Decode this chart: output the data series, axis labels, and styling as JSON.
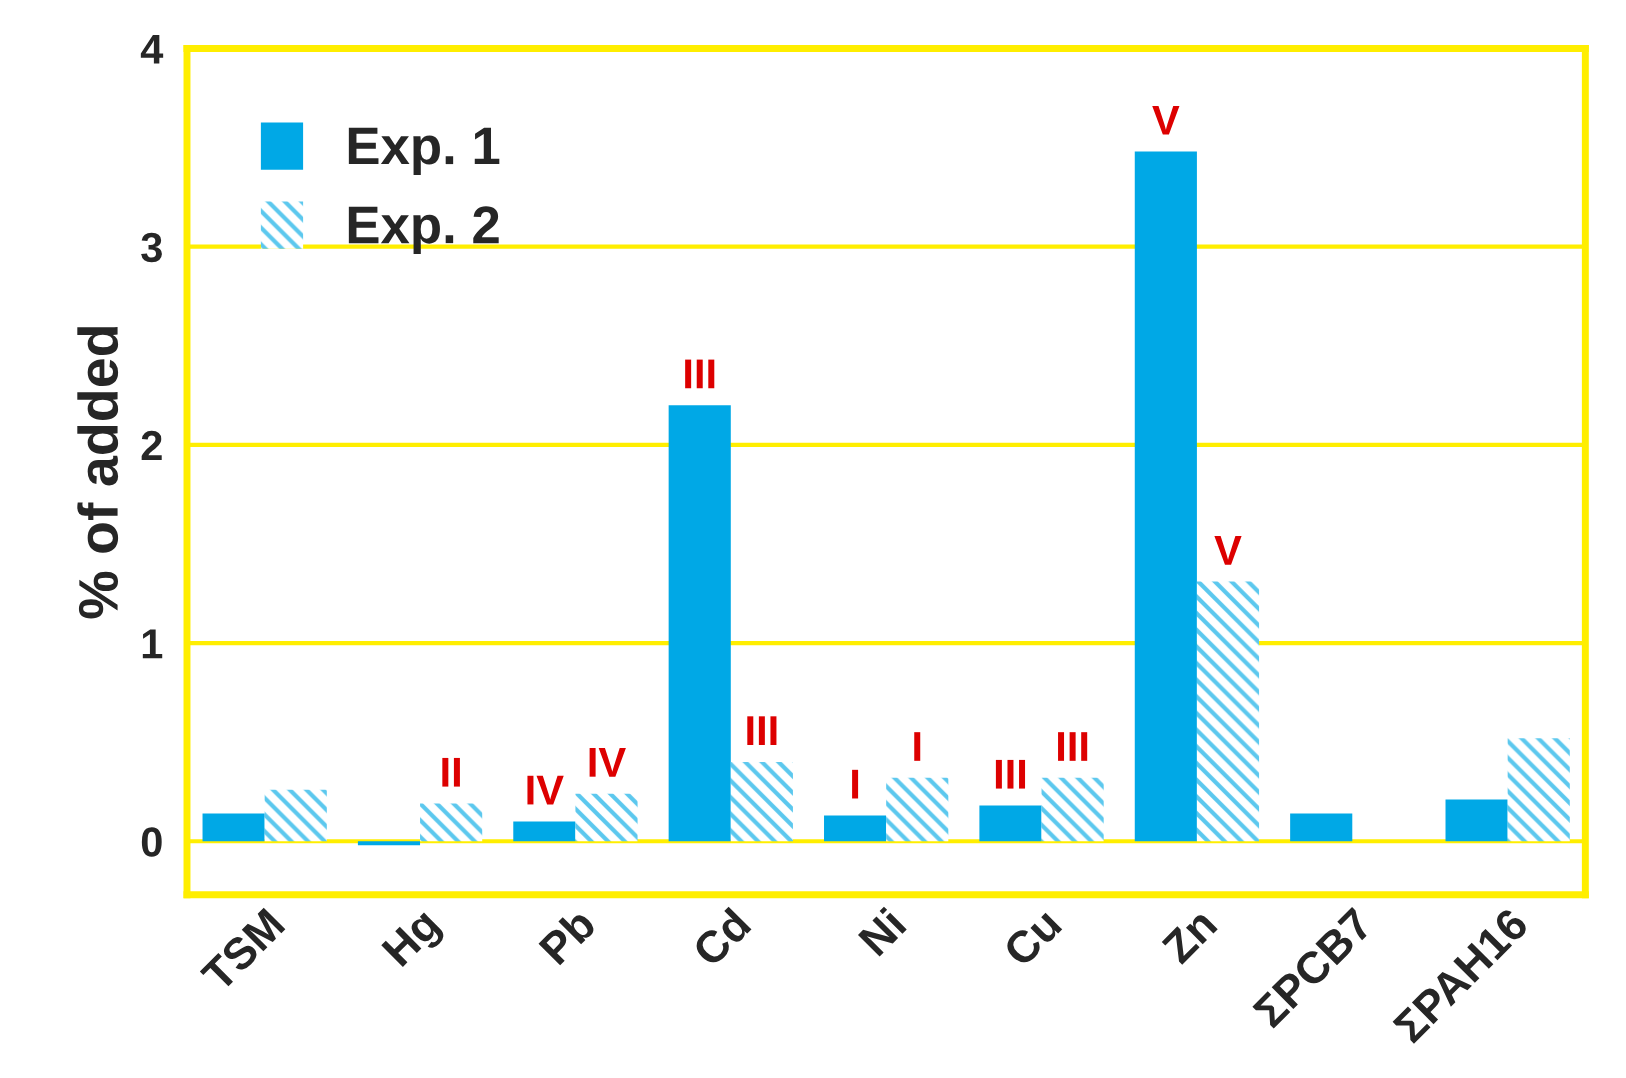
{
  "chart_data": {
    "type": "bar",
    "ylabel": "% of added",
    "categories": [
      "TSM",
      "Hg",
      "Pb",
      "Cd",
      "Ni",
      "Cu",
      "Zn",
      "ΣPCB7",
      "ΣPAH16"
    ],
    "series": [
      {
        "name": "Exp. 1",
        "color": "#00a8e6",
        "values": [
          0.14,
          -0.02,
          0.1,
          2.2,
          0.13,
          0.18,
          3.48,
          0.14,
          0.21
        ],
        "value_labels": [
          null,
          null,
          "IV",
          "III",
          "I",
          "III",
          "V",
          null,
          null
        ]
      },
      {
        "name": "Exp. 2",
        "color": "#5cc8ee",
        "values": [
          0.26,
          0.19,
          0.24,
          0.4,
          0.32,
          0.32,
          1.31,
          null,
          0.52
        ],
        "value_labels": [
          null,
          "II",
          "IV",
          "III",
          "I",
          "III",
          "V",
          null,
          null
        ]
      }
    ],
    "ylim": [
      -0.27,
      4
    ],
    "yticks": [
      0,
      1,
      2,
      3,
      4
    ],
    "grid": "y",
    "legend": "top left"
  }
}
